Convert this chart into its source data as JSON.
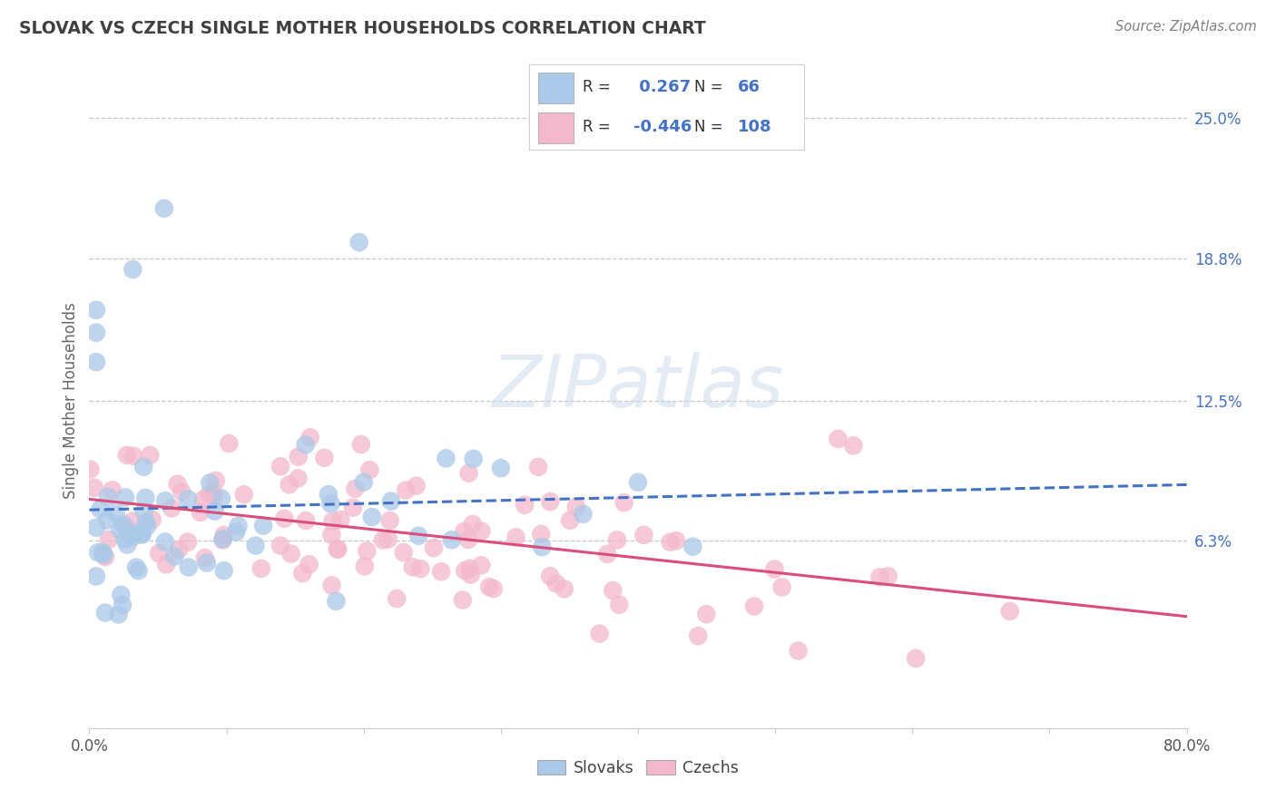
{
  "title": "SLOVAK VS CZECH SINGLE MOTHER HOUSEHOLDS CORRELATION CHART",
  "source": "Source: ZipAtlas.com",
  "ylabel": "Single Mother Households",
  "watermark": "ZIPatlas",
  "xlim": [
    0.0,
    0.8
  ],
  "ylim": [
    -0.02,
    0.27
  ],
  "plot_ylim_low": -0.02,
  "plot_ylim_high": 0.27,
  "ytick_right_labels": [
    "6.3%",
    "12.5%",
    "18.8%",
    "25.0%"
  ],
  "ytick_right_values": [
    0.063,
    0.125,
    0.188,
    0.25
  ],
  "slovak_R": 0.267,
  "slovak_N": 66,
  "czech_R": -0.446,
  "czech_N": 108,
  "slovak_color": "#aac8e8",
  "czech_color": "#f4b8cc",
  "slovak_trend_color": "#4472c4",
  "czech_trend_color": "#d94f7a",
  "background_color": "#ffffff",
  "grid_color": "#c8c8c8",
  "title_color": "#404040",
  "source_color": "#808080",
  "legend_border_color": "#d0d0d0",
  "right_axis_color": "#4472c4"
}
